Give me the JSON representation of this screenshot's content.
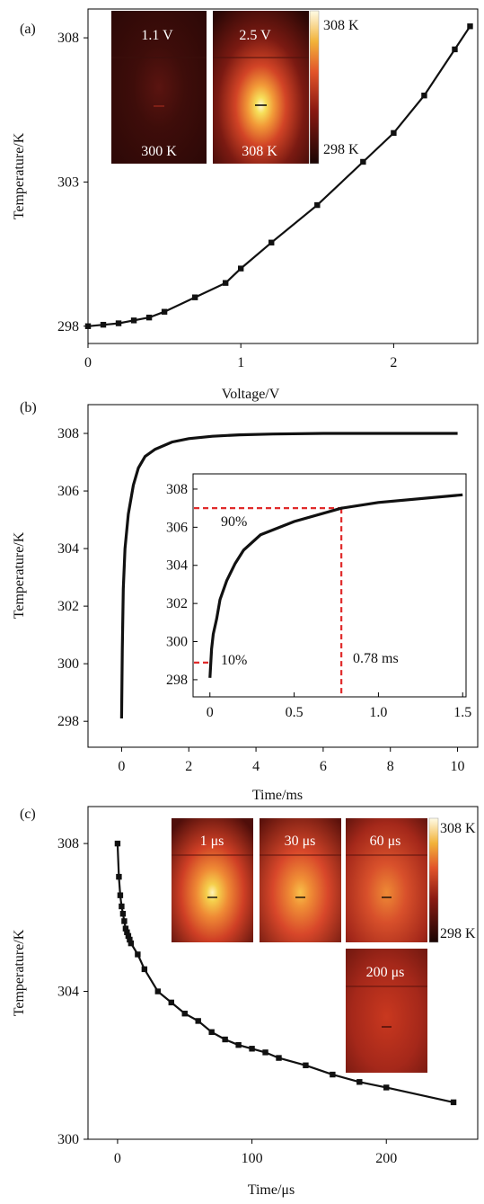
{
  "chart_data": [
    {
      "panel_label": "(a)",
      "type": "line",
      "xlabel": "Voltage/V",
      "ylabel": "Temperature/K",
      "xlim": [
        0,
        2.55
      ],
      "ylim": [
        297.4,
        309.0
      ],
      "xticks": [
        "0",
        "1",
        "2"
      ],
      "yticks": [
        "298",
        "303",
        "308"
      ],
      "markers": "square",
      "x": [
        0,
        0.1,
        0.2,
        0.3,
        0.4,
        0.5,
        0.7,
        0.9,
        1.0,
        1.2,
        1.5,
        1.8,
        2.0,
        2.2,
        2.4,
        2.5
      ],
      "y": [
        298.0,
        298.05,
        298.1,
        298.2,
        298.3,
        298.5,
        299.0,
        299.5,
        300.0,
        300.9,
        302.2,
        303.7,
        304.7,
        306.0,
        307.6,
        308.4
      ],
      "insets": [
        {
          "top": "1.1 V",
          "bottom": "300 K",
          "level": 0.2
        },
        {
          "top": "2.5 V",
          "bottom": "308 K",
          "level": 1.0
        }
      ],
      "colorbar": {
        "max_label": "308 K",
        "min_label": "298 K"
      }
    },
    {
      "panel_label": "(b)",
      "type": "line",
      "xlabel": "Time/ms",
      "ylabel": "Temperature/K",
      "xlim": [
        -1.0,
        10.6
      ],
      "ylim": [
        297.1,
        309.0
      ],
      "xticks": [
        "0",
        "2",
        "4",
        "6",
        "8",
        "10"
      ],
      "yticks": [
        "298",
        "300",
        "302",
        "304",
        "306",
        "308"
      ],
      "x": [
        0,
        0.02,
        0.05,
        0.1,
        0.2,
        0.35,
        0.5,
        0.7,
        1.0,
        1.5,
        2.0,
        2.7,
        3.5,
        4.5,
        6.0,
        8.0,
        10.0
      ],
      "y": [
        298.1,
        300.5,
        302.6,
        304.0,
        305.2,
        306.2,
        306.8,
        307.2,
        307.45,
        307.7,
        307.82,
        307.9,
        307.95,
        307.98,
        308.0,
        308.0,
        308.0
      ],
      "inset": {
        "xlim": [
          -0.1,
          1.52
        ],
        "ylim": [
          297.1,
          308.8
        ],
        "xticks": [
          "0",
          "0.5",
          "1.0",
          "1.5"
        ],
        "yticks": [
          "298",
          "300",
          "302",
          "304",
          "306",
          "308"
        ],
        "x": [
          0,
          0.01,
          0.02,
          0.04,
          0.06,
          0.1,
          0.15,
          0.2,
          0.3,
          0.5,
          0.78,
          1.0,
          1.5
        ],
        "y": [
          298.1,
          299.6,
          300.4,
          301.2,
          302.2,
          303.2,
          304.1,
          304.8,
          305.6,
          306.3,
          307.0,
          307.3,
          307.7
        ],
        "annotations": {
          "p90": "90%",
          "p10": "10%",
          "time": "0.78 ms"
        },
        "y90": 307.0,
        "y10": 298.9,
        "t90": 0.78
      }
    },
    {
      "panel_label": "(c)",
      "type": "line",
      "xlabel": "Time/μs",
      "ylabel": "Temperature/K",
      "xlim": [
        -22,
        268
      ],
      "ylim": [
        300.0,
        309.0
      ],
      "xticks": [
        "0",
        "100",
        "200"
      ],
      "yticks": [
        "300",
        "304",
        "308"
      ],
      "markers": "square",
      "x": [
        0,
        1,
        2,
        3,
        4,
        5,
        6,
        7,
        8,
        9,
        10,
        15,
        20,
        30,
        40,
        50,
        60,
        70,
        80,
        90,
        100,
        110,
        120,
        140,
        160,
        180,
        200,
        250
      ],
      "y": [
        308.0,
        307.1,
        306.6,
        306.3,
        306.1,
        305.9,
        305.7,
        305.6,
        305.5,
        305.4,
        305.3,
        305.0,
        304.6,
        304.0,
        303.7,
        303.4,
        303.2,
        302.9,
        302.7,
        302.55,
        302.45,
        302.35,
        302.2,
        302.0,
        301.75,
        301.55,
        301.4,
        301.0
      ],
      "insets": [
        {
          "label": "1 μs",
          "level": 1.0
        },
        {
          "label": "30 μs",
          "level": 0.75
        },
        {
          "label": "60 μs",
          "level": 0.6
        },
        {
          "label": "200 μs",
          "level": 0.3
        }
      ],
      "colorbar": {
        "max_label": "308 K",
        "min_label": "298 K"
      }
    }
  ]
}
